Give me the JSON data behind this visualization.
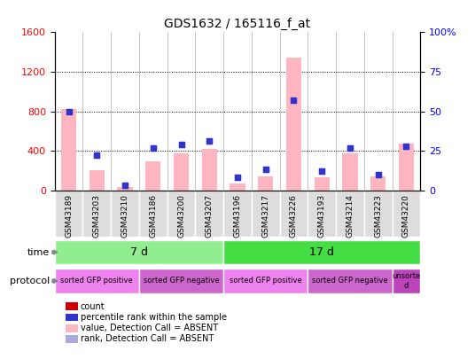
{
  "title": "GDS1632 / 165116_f_at",
  "samples": [
    "GSM43189",
    "GSM43203",
    "GSM43210",
    "GSM43186",
    "GSM43200",
    "GSM43207",
    "GSM43196",
    "GSM43217",
    "GSM43226",
    "GSM43193",
    "GSM43214",
    "GSM43223",
    "GSM43220"
  ],
  "count_values": [
    0,
    0,
    0,
    0,
    0,
    0,
    0,
    0,
    0,
    0,
    0,
    0,
    0
  ],
  "rank_values": [
    50,
    22,
    3,
    27,
    29,
    31,
    8,
    13,
    57,
    12,
    27,
    10,
    28
  ],
  "absent_value": [
    820,
    200,
    30,
    290,
    370,
    420,
    70,
    140,
    1340,
    130,
    370,
    140,
    470
  ],
  "absent_rank": [
    50,
    22,
    3,
    27,
    29,
    31,
    8,
    13,
    57,
    12,
    27,
    10,
    28
  ],
  "ylim_left": [
    0,
    1600
  ],
  "ylim_right": [
    0,
    100
  ],
  "yticks_left": [
    0,
    400,
    800,
    1200,
    1600
  ],
  "yticks_right": [
    0,
    25,
    50,
    75,
    100
  ],
  "ytick_right_labels": [
    "0",
    "25",
    "50",
    "75",
    "100%"
  ],
  "time_groups": [
    {
      "label": "7 d",
      "start": 0,
      "end": 6,
      "color": "#90EE90"
    },
    {
      "label": "17 d",
      "start": 6,
      "end": 13,
      "color": "#44DD44"
    }
  ],
  "protocol_groups": [
    {
      "label": "sorted GFP positive",
      "start": 0,
      "end": 3,
      "color": "#EE82EE"
    },
    {
      "label": "sorted GFP negative",
      "start": 3,
      "end": 6,
      "color": "#CC66CC"
    },
    {
      "label": "sorted GFP positive",
      "start": 6,
      "end": 9,
      "color": "#EE82EE"
    },
    {
      "label": "sorted GFP negative",
      "start": 9,
      "end": 12,
      "color": "#CC66CC"
    },
    {
      "label": "unsorte\nd",
      "start": 12,
      "end": 13,
      "color": "#BB44BB"
    }
  ],
  "bar_color_absent": "#FFB6C1",
  "bar_color_count": "#CC0000",
  "dot_color_rank": "#3333CC",
  "dot_color_absent_rank": "#AAAADD",
  "sample_label_bg": "#DDDDDD",
  "legend_items": [
    {
      "label": "count",
      "color": "#CC0000"
    },
    {
      "label": "percentile rank within the sample",
      "color": "#3333CC"
    },
    {
      "label": "value, Detection Call = ABSENT",
      "color": "#FFB6C1"
    },
    {
      "label": "rank, Detection Call = ABSENT",
      "color": "#AAAADD"
    }
  ]
}
